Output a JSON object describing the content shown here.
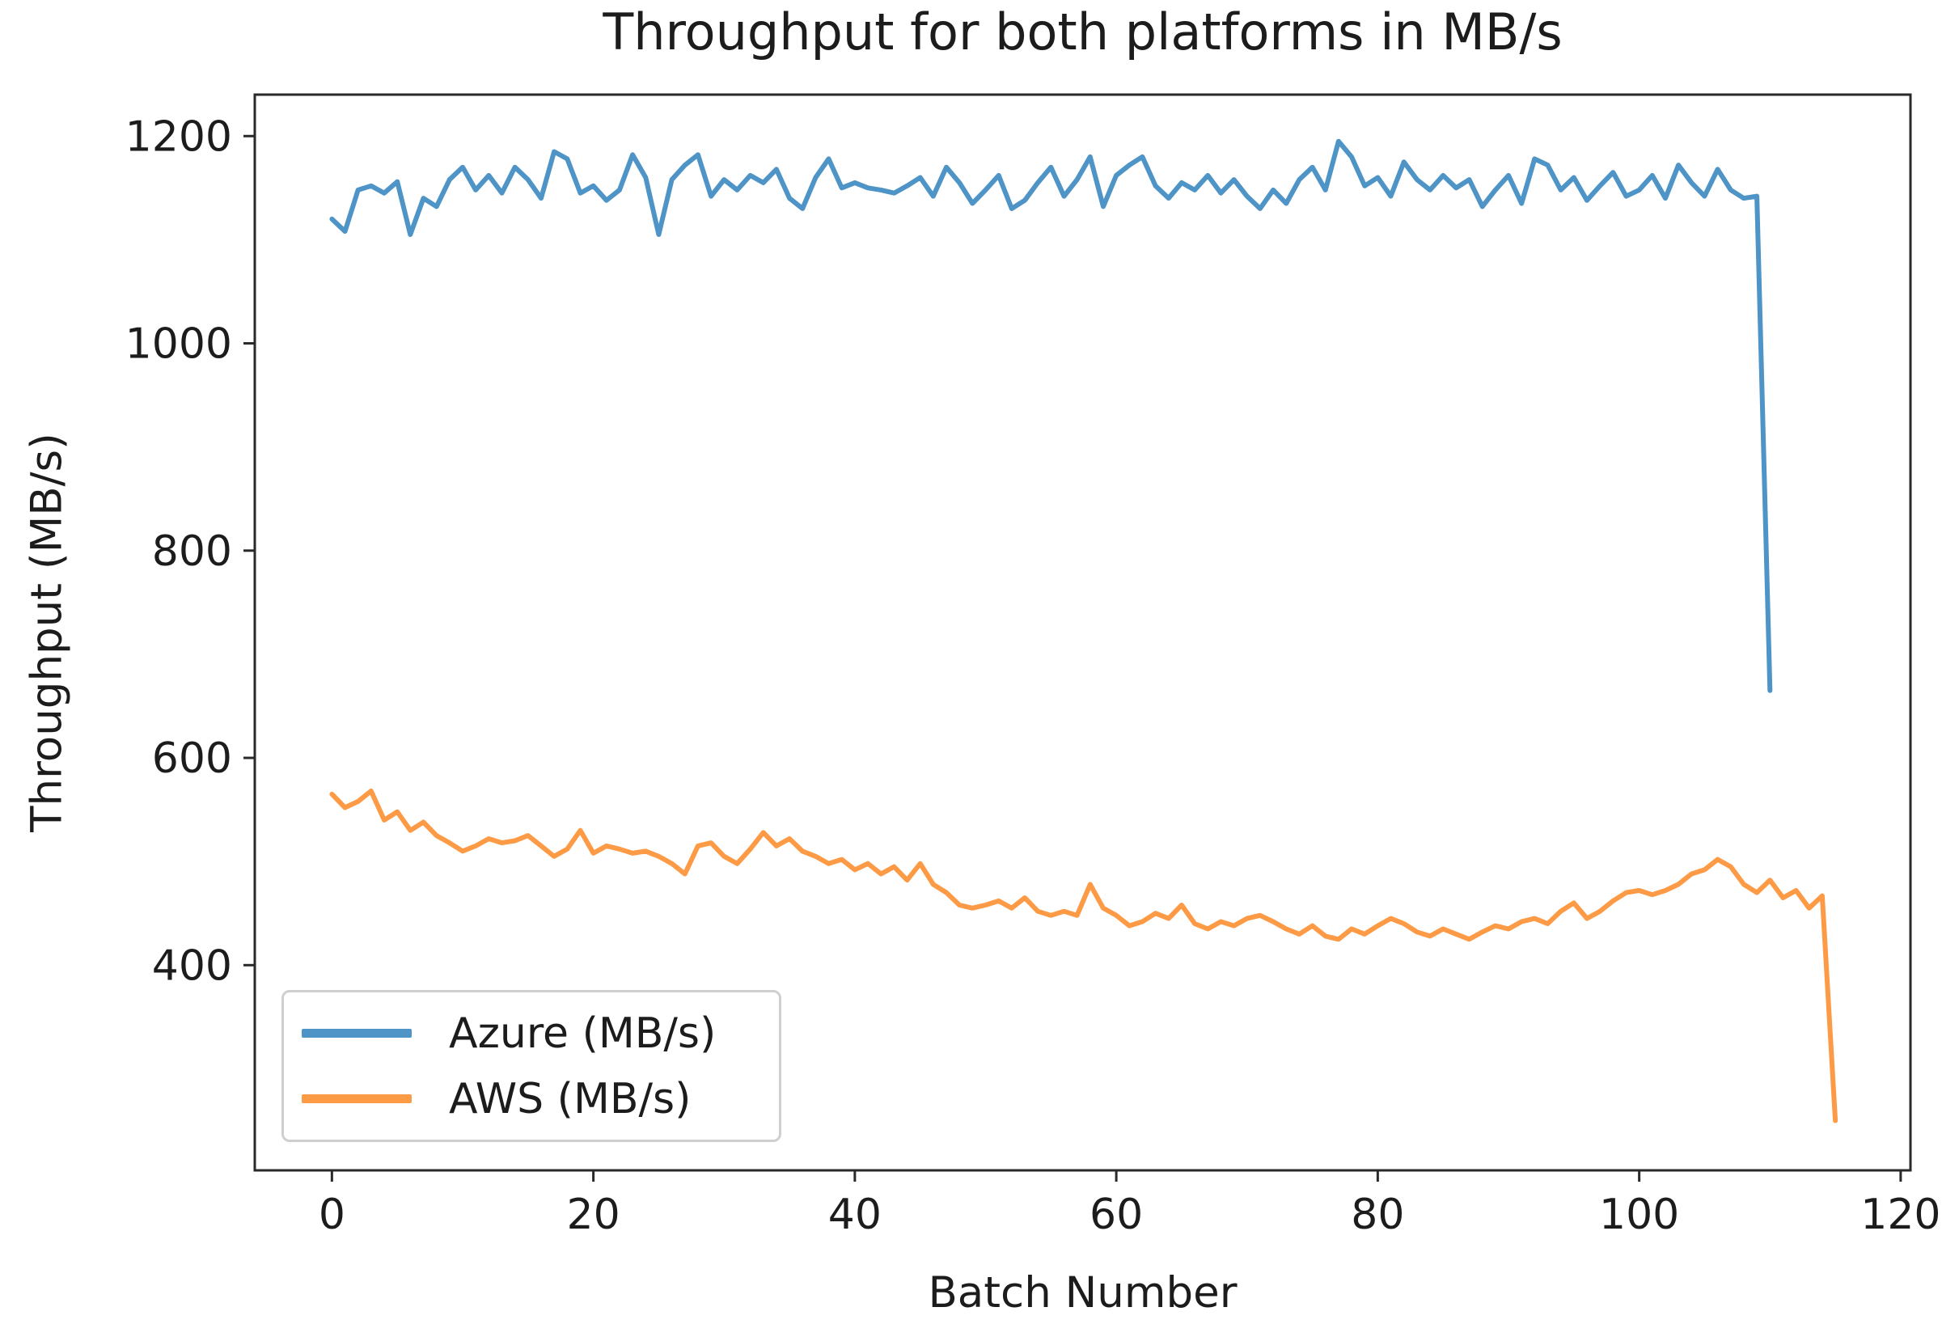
{
  "chart_data": {
    "type": "line",
    "title": "Throughput for both platforms in MB/s",
    "xlabel": "Batch Number",
    "ylabel": "Throughput (MB/s)",
    "xlim": [
      -5.9,
      120.75
    ],
    "ylim": [
      202,
      1240
    ],
    "xticks": [
      0,
      20,
      40,
      60,
      80,
      100,
      120
    ],
    "yticks": [
      400,
      600,
      800,
      1000,
      1200
    ],
    "grid": false,
    "legend_position": "lower left",
    "series": [
      {
        "id": "azure",
        "name": "Azure (MB/s)",
        "color": "#4e94c6",
        "x_start": 0,
        "values": [
          1120,
          1108,
          1148,
          1152,
          1145,
          1156,
          1105,
          1140,
          1132,
          1158,
          1170,
          1148,
          1162,
          1145,
          1170,
          1158,
          1140,
          1185,
          1178,
          1145,
          1152,
          1138,
          1148,
          1182,
          1160,
          1105,
          1158,
          1172,
          1182,
          1142,
          1158,
          1148,
          1162,
          1155,
          1168,
          1140,
          1130,
          1160,
          1178,
          1150,
          1155,
          1150,
          1148,
          1145,
          1152,
          1160,
          1142,
          1170,
          1155,
          1135,
          1148,
          1162,
          1130,
          1138,
          1155,
          1170,
          1142,
          1158,
          1180,
          1132,
          1162,
          1172,
          1180,
          1152,
          1140,
          1155,
          1148,
          1162,
          1145,
          1158,
          1142,
          1130,
          1148,
          1135,
          1158,
          1170,
          1148,
          1195,
          1180,
          1152,
          1160,
          1142,
          1175,
          1158,
          1148,
          1162,
          1150,
          1158,
          1132,
          1148,
          1162,
          1135,
          1178,
          1172,
          1148,
          1160,
          1138,
          1152,
          1165,
          1142,
          1148,
          1162,
          1140,
          1172,
          1155,
          1142,
          1168,
          1148,
          1140,
          1142,
          665
        ]
      },
      {
        "id": "aws",
        "name": "AWS (MB/s)",
        "color": "#fd9a46",
        "x_start": 0,
        "values": [
          565,
          552,
          558,
          568,
          540,
          548,
          530,
          538,
          525,
          518,
          510,
          515,
          522,
          518,
          520,
          525,
          515,
          505,
          512,
          530,
          508,
          515,
          512,
          508,
          510,
          505,
          498,
          488,
          515,
          518,
          505,
          498,
          512,
          528,
          515,
          522,
          510,
          505,
          498,
          502,
          492,
          498,
          488,
          495,
          482,
          498,
          478,
          470,
          458,
          455,
          458,
          462,
          455,
          465,
          452,
          448,
          452,
          448,
          478,
          455,
          448,
          438,
          442,
          450,
          445,
          458,
          440,
          435,
          442,
          438,
          445,
          448,
          442,
          435,
          430,
          438,
          428,
          425,
          435,
          430,
          438,
          445,
          440,
          432,
          428,
          435,
          430,
          425,
          432,
          438,
          435,
          442,
          445,
          440,
          452,
          460,
          445,
          452,
          462,
          470,
          472,
          468,
          472,
          478,
          488,
          492,
          502,
          495,
          478,
          470,
          482,
          465,
          472,
          455,
          467,
          250
        ]
      }
    ]
  },
  "colors": {
    "spine": "#2a2a2a",
    "text": "#1c1c1c",
    "background": "#ffffff"
  }
}
